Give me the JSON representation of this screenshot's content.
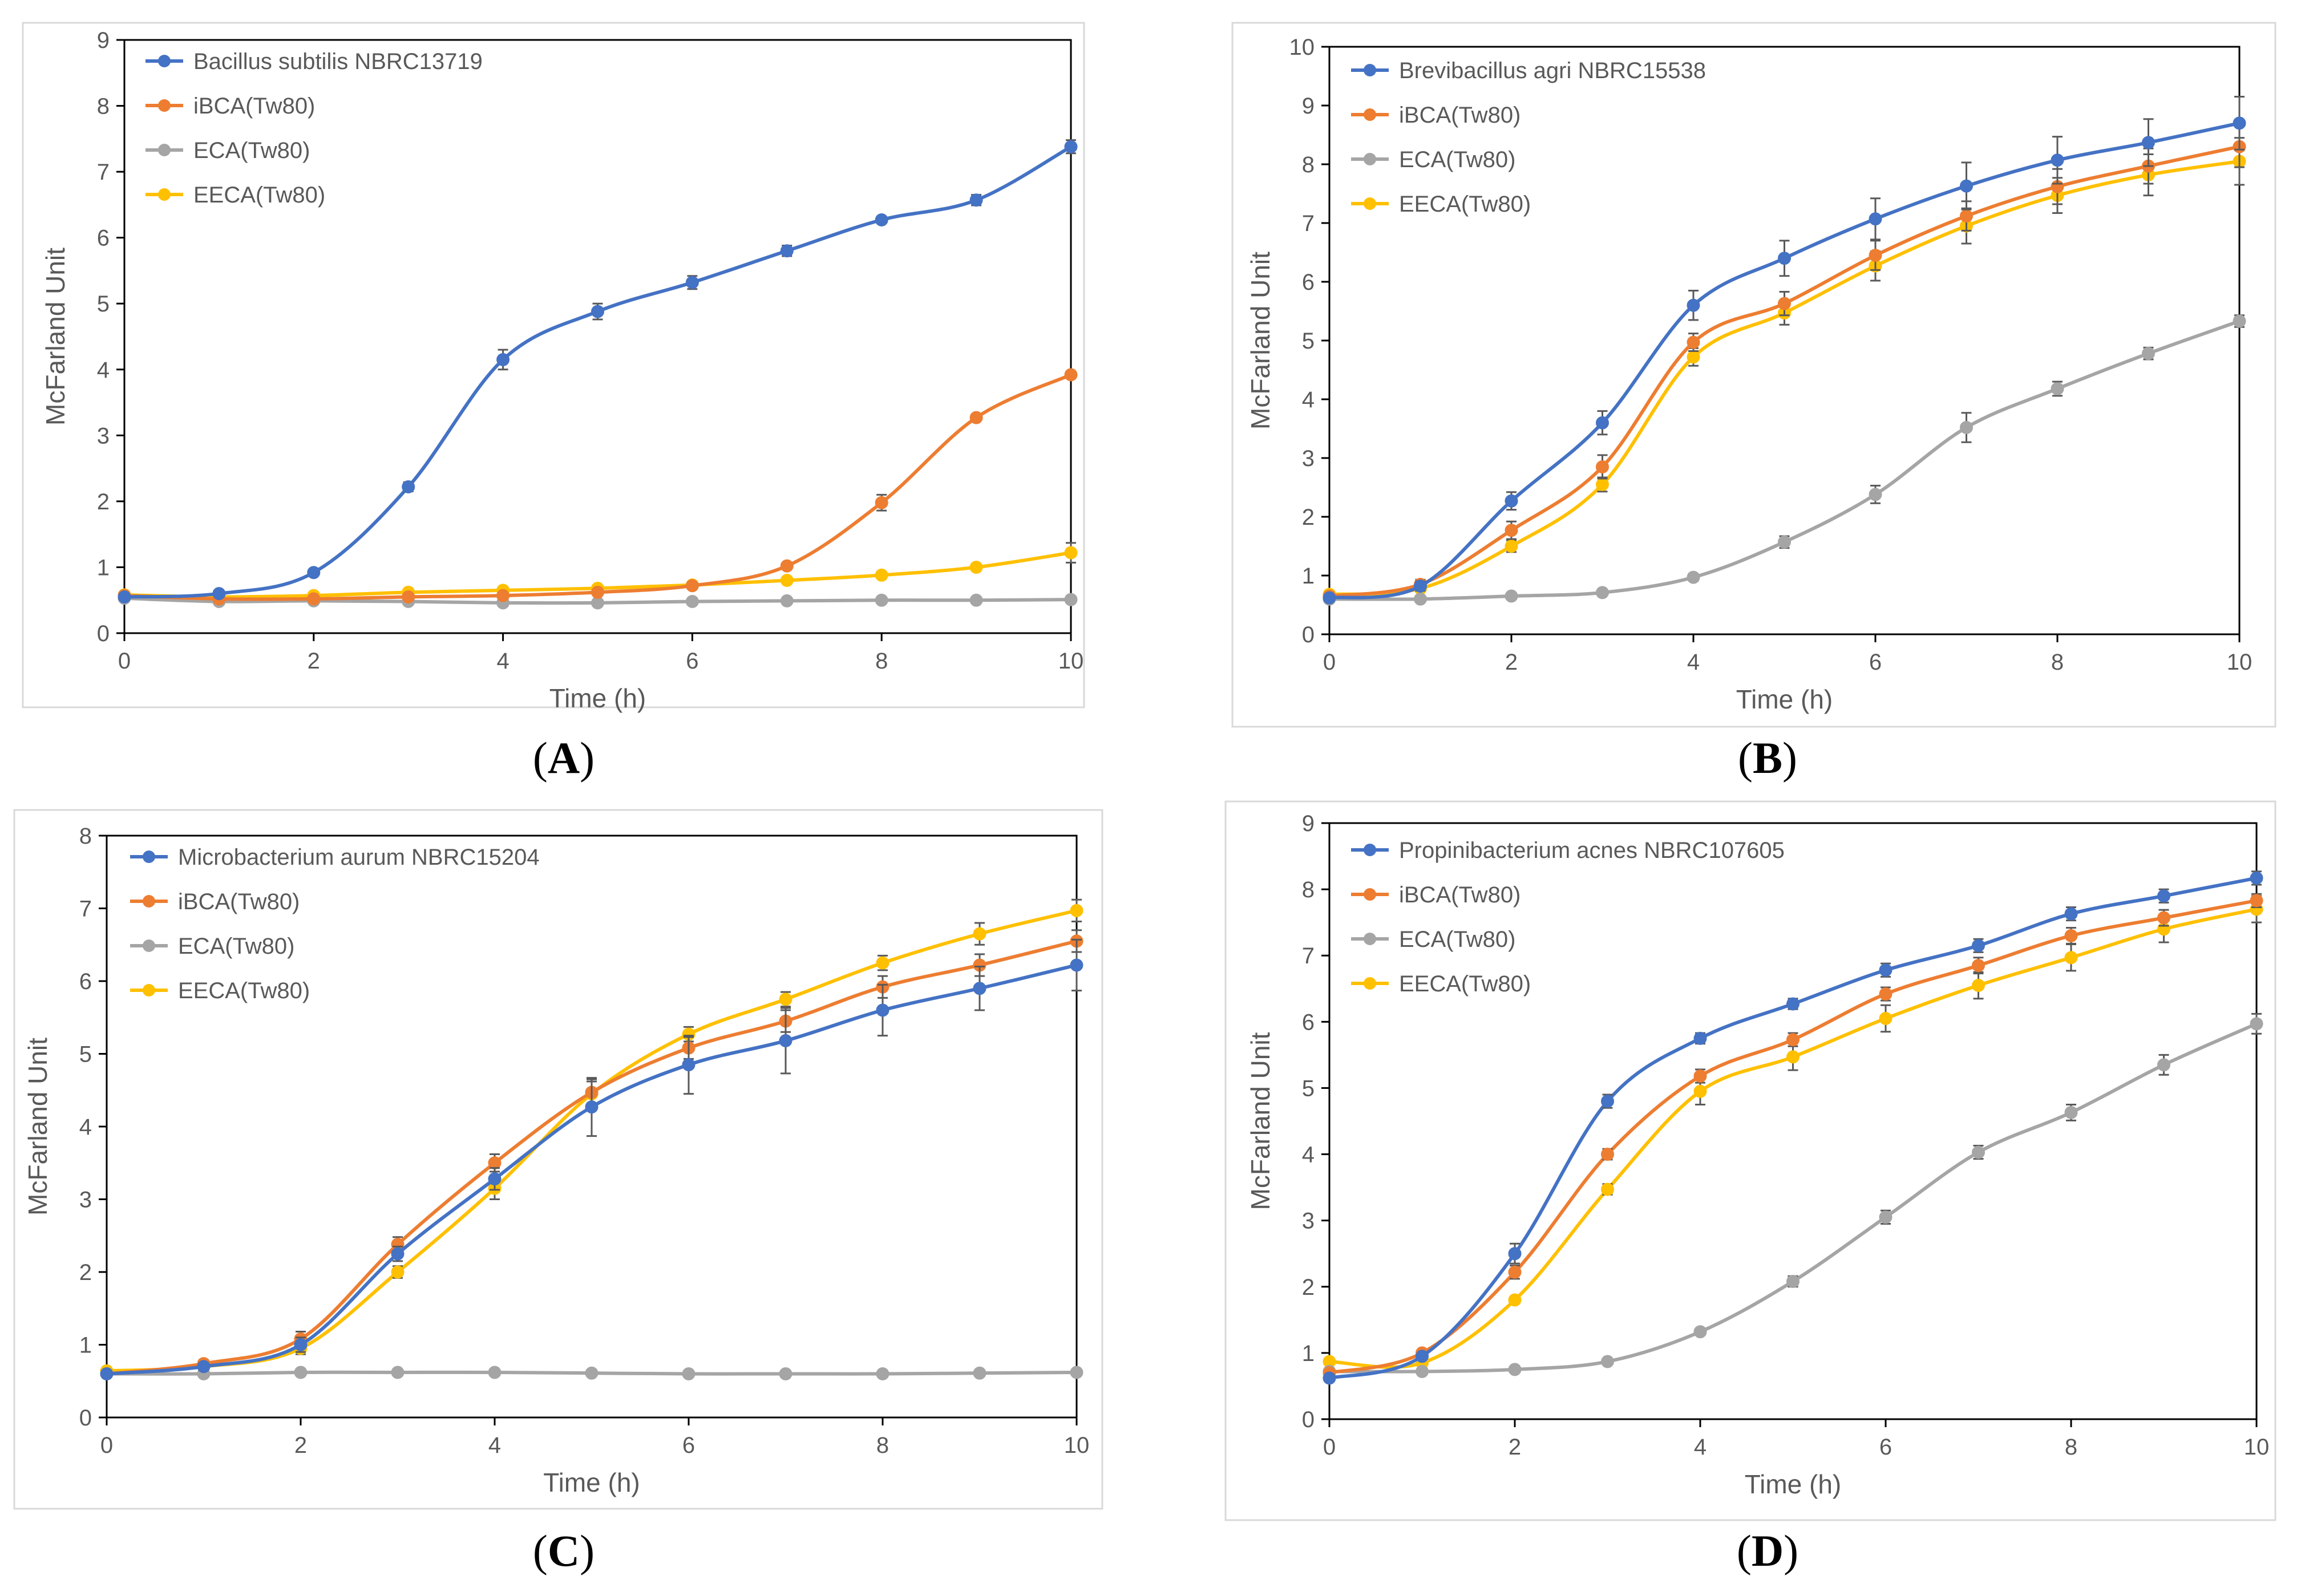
{
  "colors": {
    "series": [
      "#4472C4",
      "#ED7D31",
      "#A5A5A5",
      "#FFC000"
    ],
    "axis": "#000000",
    "frame": "#D9D9D9",
    "text": "#595959"
  },
  "chart_data": [
    {
      "id": "A",
      "type": "line",
      "caption_letter": "A",
      "xlabel": "Time (h)",
      "ylabel": "McFarland Unit",
      "xlim": [
        0,
        10
      ],
      "ylim": [
        0,
        9
      ],
      "xticks": [
        0,
        2,
        4,
        6,
        8,
        10
      ],
      "yticks": [
        0,
        1,
        2,
        3,
        4,
        5,
        6,
        7,
        8,
        9
      ],
      "legend_position": "top-left",
      "x": [
        0,
        1,
        2,
        3,
        4,
        5,
        6,
        7,
        8,
        9,
        10
      ],
      "series": [
        {
          "name": "Bacillus subtilis NBRC13719",
          "values": [
            0.55,
            0.6,
            0.92,
            2.22,
            4.15,
            4.88,
            5.32,
            5.8,
            6.27,
            6.57,
            7.38
          ],
          "errors": [
            0.03,
            0.03,
            0.03,
            0.07,
            0.15,
            0.12,
            0.1,
            0.08,
            0.05,
            0.08,
            0.1
          ]
        },
        {
          "name": "iBCA(Tw80)",
          "values": [
            0.57,
            0.52,
            0.52,
            0.55,
            0.57,
            0.62,
            0.72,
            1.02,
            1.98,
            3.27,
            3.92
          ],
          "errors": [
            0.03,
            0.02,
            0.02,
            0.02,
            0.02,
            0.03,
            0.03,
            0.05,
            0.12,
            0.05,
            0.05
          ]
        },
        {
          "name": "ECA(Tw80)",
          "values": [
            0.53,
            0.48,
            0.49,
            0.48,
            0.46,
            0.46,
            0.48,
            0.49,
            0.5,
            0.5,
            0.51
          ],
          "errors": [
            0.02,
            0.02,
            0.02,
            0.02,
            0.02,
            0.02,
            0.02,
            0.02,
            0.02,
            0.02,
            0.02
          ]
        },
        {
          "name": "EECA(Tw80)",
          "values": [
            0.58,
            0.55,
            0.57,
            0.62,
            0.65,
            0.68,
            0.73,
            0.8,
            0.88,
            1.0,
            1.22
          ],
          "errors": [
            0.02,
            0.02,
            0.02,
            0.02,
            0.02,
            0.02,
            0.02,
            0.02,
            0.02,
            0.04,
            0.15
          ]
        }
      ]
    },
    {
      "id": "B",
      "type": "line",
      "caption_letter": "B",
      "xlabel": "Time (h)",
      "ylabel": "McFarland Unit",
      "xlim": [
        0,
        10
      ],
      "ylim": [
        0,
        10
      ],
      "xticks": [
        0,
        2,
        4,
        6,
        8,
        10
      ],
      "yticks": [
        0,
        1,
        2,
        3,
        4,
        5,
        6,
        7,
        8,
        9,
        10
      ],
      "legend_position": "top-left",
      "x": [
        0,
        1,
        2,
        3,
        4,
        5,
        6,
        7,
        8,
        9,
        10
      ],
      "series": [
        {
          "name": "Brevibacillus agri NBRC15538",
          "values": [
            0.62,
            0.82,
            2.27,
            3.6,
            5.6,
            6.4,
            7.07,
            7.63,
            8.07,
            8.37,
            8.7
          ],
          "errors": [
            0.05,
            0.08,
            0.15,
            0.2,
            0.25,
            0.3,
            0.35,
            0.4,
            0.4,
            0.4,
            0.45
          ]
        },
        {
          "name": "iBCA(Tw80)",
          "values": [
            0.65,
            0.85,
            1.77,
            2.85,
            4.97,
            5.63,
            6.45,
            7.12,
            7.62,
            7.97,
            8.3
          ],
          "errors": [
            0.05,
            0.08,
            0.15,
            0.2,
            0.15,
            0.2,
            0.25,
            0.25,
            0.3,
            0.3,
            0.35
          ]
        },
        {
          "name": "ECA(Tw80)",
          "values": [
            0.6,
            0.6,
            0.65,
            0.71,
            0.97,
            1.57,
            2.38,
            3.52,
            4.18,
            4.78,
            5.33
          ],
          "errors": [
            0.03,
            0.03,
            0.03,
            0.05,
            0.06,
            0.1,
            0.15,
            0.25,
            0.12,
            0.1,
            0.1
          ]
        },
        {
          "name": "EECA(Tw80)",
          "values": [
            0.68,
            0.78,
            1.5,
            2.55,
            4.72,
            5.47,
            6.27,
            6.95,
            7.47,
            7.82,
            8.05
          ],
          "errors": [
            0.05,
            0.05,
            0.1,
            0.12,
            0.15,
            0.2,
            0.25,
            0.3,
            0.3,
            0.35,
            0.4
          ]
        }
      ]
    },
    {
      "id": "C",
      "type": "line",
      "caption_letter": "C",
      "xlabel": "Time (h)",
      "ylabel": "McFarland Unit",
      "xlim": [
        0,
        10
      ],
      "ylim": [
        0,
        8
      ],
      "xticks": [
        0,
        2,
        4,
        6,
        8,
        10
      ],
      "yticks": [
        0,
        1,
        2,
        3,
        4,
        5,
        6,
        7,
        8
      ],
      "legend_position": "top-left",
      "x": [
        0,
        1,
        2,
        3,
        4,
        5,
        6,
        7,
        8,
        9,
        10
      ],
      "series": [
        {
          "name": "Microbacterium aurum NBRC15204",
          "values": [
            0.6,
            0.7,
            1.0,
            2.25,
            3.28,
            4.27,
            4.85,
            5.18,
            5.6,
            5.9,
            6.22
          ],
          "errors": [
            0.03,
            0.05,
            0.1,
            0.1,
            0.15,
            0.4,
            0.4,
            0.45,
            0.35,
            0.3,
            0.35
          ]
        },
        {
          "name": "iBCA(Tw80)",
          "values": [
            0.6,
            0.74,
            1.08,
            2.38,
            3.5,
            4.47,
            5.08,
            5.45,
            5.92,
            6.22,
            6.55
          ],
          "errors": [
            0.03,
            0.05,
            0.1,
            0.1,
            0.12,
            0.15,
            0.15,
            0.15,
            0.15,
            0.15,
            0.15
          ]
        },
        {
          "name": "ECA(Tw80)",
          "values": [
            0.6,
            0.6,
            0.62,
            0.62,
            0.62,
            0.61,
            0.6,
            0.6,
            0.6,
            0.61,
            0.62
          ],
          "errors": [
            0.02,
            0.02,
            0.02,
            0.02,
            0.02,
            0.02,
            0.02,
            0.02,
            0.02,
            0.02,
            0.02
          ]
        },
        {
          "name": "EECA(Tw80)",
          "values": [
            0.64,
            0.7,
            0.95,
            2.0,
            3.15,
            4.45,
            5.27,
            5.75,
            6.25,
            6.65,
            6.97
          ],
          "errors": [
            0.03,
            0.05,
            0.08,
            0.08,
            0.15,
            0.2,
            0.1,
            0.1,
            0.1,
            0.15,
            0.15
          ]
        }
      ]
    },
    {
      "id": "D",
      "type": "line",
      "caption_letter": "D",
      "xlabel": "Time (h)",
      "ylabel": "McFarland Unit",
      "xlim": [
        0,
        10
      ],
      "ylim": [
        0,
        9
      ],
      "xticks": [
        0,
        2,
        4,
        6,
        8,
        10
      ],
      "yticks": [
        0,
        1,
        2,
        3,
        4,
        5,
        6,
        7,
        8,
        9
      ],
      "legend_position": "top-left",
      "x": [
        0,
        1,
        2,
        3,
        4,
        5,
        6,
        7,
        8,
        9,
        10
      ],
      "series": [
        {
          "name": "Propinibacterium acnes NBRC107605",
          "values": [
            0.62,
            0.95,
            2.5,
            4.8,
            5.75,
            6.27,
            6.78,
            7.15,
            7.63,
            7.9,
            8.17
          ],
          "errors": [
            0.03,
            0.05,
            0.15,
            0.1,
            0.08,
            0.08,
            0.1,
            0.1,
            0.1,
            0.1,
            0.1
          ]
        },
        {
          "name": "iBCA(Tw80)",
          "values": [
            0.7,
            1.0,
            2.22,
            4.0,
            5.18,
            5.73,
            6.42,
            6.85,
            7.3,
            7.57,
            7.83
          ],
          "errors": [
            0.03,
            0.05,
            0.1,
            0.08,
            0.1,
            0.1,
            0.1,
            0.12,
            0.12,
            0.12,
            0.1
          ]
        },
        {
          "name": "ECA(Tw80)",
          "values": [
            0.72,
            0.72,
            0.75,
            0.87,
            1.32,
            2.08,
            3.05,
            4.03,
            4.63,
            5.35,
            5.97
          ],
          "errors": [
            0.02,
            0.02,
            0.02,
            0.03,
            0.05,
            0.08,
            0.1,
            0.1,
            0.12,
            0.15,
            0.15
          ]
        },
        {
          "name": "EECA(Tw80)",
          "values": [
            0.87,
            0.85,
            1.8,
            3.47,
            4.95,
            5.47,
            6.05,
            6.55,
            6.97,
            7.4,
            7.7
          ],
          "errors": [
            0.03,
            0.05,
            0.05,
            0.08,
            0.2,
            0.2,
            0.2,
            0.2,
            0.2,
            0.2,
            0.2
          ]
        }
      ]
    }
  ]
}
